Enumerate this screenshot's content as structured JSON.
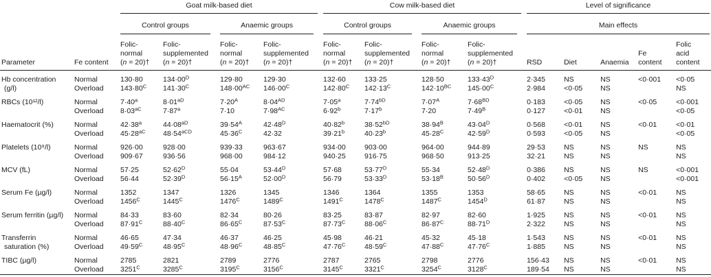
{
  "table": {
    "header": {
      "groups": [
        {
          "label": "Goat milk-based diet"
        },
        {
          "label": "Cow milk-based diet"
        },
        {
          "label": "Level of significance"
        }
      ],
      "subgroups": [
        {
          "label": "Control groups"
        },
        {
          "label": "Anaemic groups"
        },
        {
          "label": "Control groups"
        },
        {
          "label": "Anaemic groups"
        },
        {
          "label": "Main effects"
        }
      ],
      "parameter": "Parameter",
      "fe_content": "Fe content",
      "group_cols": [
        [
          "Folic-",
          "normal",
          "(n = 20)†"
        ],
        [
          "Folic-",
          "supplemented",
          "(n = 20)†"
        ],
        [
          "Folic-",
          "normal",
          "(n = 20)†"
        ],
        [
          "Folic-",
          "supplemented",
          "(n = 20)†"
        ],
        [
          "Folic-",
          "normal",
          "(n = 20)†"
        ],
        [
          "Folic-",
          "supplemented",
          "(n = 20)†"
        ],
        [
          "Folic-",
          "normal",
          "(n = 20)†"
        ],
        [
          "Folic-",
          "supplemented",
          "(n = 20)†"
        ]
      ],
      "sig_cols": [
        [
          "RSD"
        ],
        [
          "Diet"
        ],
        [
          "Anaemia"
        ],
        [
          "Fe",
          "content"
        ],
        [
          "Folic",
          "acid",
          "content"
        ]
      ]
    },
    "rows": [
      {
        "parameter": [
          "Hb concentration",
          "(g/l)"
        ],
        "normal": {
          "label": "Normal",
          "values": [
            "130·80",
            "134·00^D",
            "129·80",
            "129·30",
            "132·60",
            "133·25",
            "128·50",
            "133·43^D"
          ],
          "sig": [
            "2·345",
            "NS",
            "NS",
            "<0·001",
            "<0·05"
          ]
        },
        "overload": {
          "label": "Overload",
          "values": [
            "143·80^C",
            "141·30^C",
            "148·00^AC",
            "146·00^C",
            "142·80^C",
            "142·13^C",
            "142·10^BC",
            "145·00^C"
          ],
          "sig": [
            "2·984",
            "<0·05",
            "NS",
            "",
            "NS"
          ]
        }
      },
      {
        "parameter": [
          "RBCs (10¹²/l)",
          ""
        ],
        "normal": {
          "label": "Normal",
          "values": [
            "7·40^a",
            "8·01^aD",
            "7·20^A",
            "8·04^AD",
            "7·05^a",
            "7·74^bD",
            "7·07^A",
            "7·68^BD"
          ],
          "sig": [
            "0·183",
            "<0·05",
            "NS",
            "<0·05",
            "<0·001"
          ]
        },
        "overload": {
          "label": "Overload",
          "values": [
            "8·03^aC",
            "7·87^a",
            "7·10",
            "7·98^AC",
            "6·92^b",
            "7·17^b",
            "7·20",
            "7·49^B"
          ],
          "sig": [
            "0·127",
            "<0·01",
            "NS",
            "",
            "<0·05"
          ]
        }
      },
      {
        "parameter": [
          "Haematocrit (%)",
          ""
        ],
        "normal": {
          "label": "Normal",
          "values": [
            "42·38^a",
            "44·08^aD",
            "39·54^A",
            "42·48^D",
            "40·82^b",
            "38·52^bD",
            "38·94^B",
            "43·04^D"
          ],
          "sig": [
            "0·568",
            "<0·01",
            "NS",
            "<0·01",
            "<0·01"
          ]
        },
        "overload": {
          "label": "Overload",
          "values": [
            "45·28^aC",
            "48·54^aCD",
            "45·36^C",
            "42·32",
            "39·21^b",
            "40·23^b",
            "45·28^C",
            "42·59^D"
          ],
          "sig": [
            "0·593",
            "<0·05",
            "NS",
            "",
            "<0·05"
          ]
        }
      },
      {
        "parameter": [
          "Platelets (10⁹/l)",
          ""
        ],
        "normal": {
          "label": "Normal",
          "values": [
            "926·00",
            "928·00",
            "939·33",
            "963·67",
            "934·00",
            "903·00",
            "964·00",
            "944·89"
          ],
          "sig": [
            "29·53",
            "NS",
            "NS",
            "NS",
            "NS"
          ]
        },
        "overload": {
          "label": "Overload",
          "values": [
            "909·67",
            "936·56",
            "968·00",
            "984·12",
            "940·25",
            "916·75",
            "968·50",
            "913·25"
          ],
          "sig": [
            "32·21",
            "NS",
            "NS",
            "",
            "NS"
          ]
        }
      },
      {
        "parameter": [
          "MCV (fL)",
          ""
        ],
        "normal": {
          "label": "Normal",
          "values": [
            "57·25",
            "52·62^D",
            "55·04",
            "53·44^D",
            "57·68",
            "53·77^D",
            "55·34",
            "52·48^D"
          ],
          "sig": [
            "0·386",
            "NS",
            "NS",
            "NS",
            "<0·001"
          ]
        },
        "overload": {
          "label": "Overload",
          "values": [
            "56·44",
            "52·39^D",
            "56·15^A",
            "52·00^D",
            "56·79",
            "53·33^D",
            "53·18^B",
            "50·56^D"
          ],
          "sig": [
            "0·402",
            "<0·05",
            "NS",
            "",
            "<0·001"
          ]
        }
      },
      {
        "parameter": [
          "Serum Fe (µg/l)",
          ""
        ],
        "normal": {
          "label": "Normal",
          "values": [
            "1352",
            "1347",
            "1326",
            "1345",
            "1346",
            "1364",
            "1355",
            "1353"
          ],
          "sig": [
            "58·65",
            "NS",
            "NS",
            "<0·01",
            "NS"
          ]
        },
        "overload": {
          "label": "Overload",
          "values": [
            "1456^C",
            "1445^C",
            "1476^C",
            "1489^C",
            "1491^C",
            "1478^C",
            "1487^C",
            "1454^D"
          ],
          "sig": [
            "61·87",
            "NS",
            "NS",
            "",
            "NS"
          ]
        }
      },
      {
        "parameter": [
          "Serum ferritin (µg/l)",
          ""
        ],
        "normal": {
          "label": "Normal",
          "values": [
            "84·33",
            "83·60",
            "82·34",
            "80·26",
            "83·25",
            "83·87",
            "82·97",
            "82·60"
          ],
          "sig": [
            "1·925",
            "NS",
            "NS",
            "<0·01",
            "NS"
          ]
        },
        "overload": {
          "label": "Overload",
          "values": [
            "87·91^C",
            "88·40^C",
            "86·65^C",
            "87·53^C",
            "87·73^C",
            "88·06^C",
            "86·87^C",
            "88·71^D"
          ],
          "sig": [
            "2·322",
            "NS",
            "NS",
            "",
            "NS"
          ]
        }
      },
      {
        "parameter": [
          "Transferrin",
          "saturation (%)"
        ],
        "normal": {
          "label": "Normal",
          "values": [
            "46·65",
            "47·34",
            "46·37",
            "46·25",
            "45·98",
            "46·21",
            "45·32",
            "45·18"
          ],
          "sig": [
            "1·543",
            "NS",
            "NS",
            "<0·01",
            "NS"
          ]
        },
        "overload": {
          "label": "Overload",
          "values": [
            "49·59^C",
            "48·95^C",
            "48·96^C",
            "48·85^C",
            "47·76^C",
            "48·59^C",
            "47·88^C",
            "47·76^C"
          ],
          "sig": [
            "1·885",
            "NS",
            "NS",
            "",
            "NS"
          ]
        }
      },
      {
        "parameter": [
          "TIBC (µg/l)",
          ""
        ],
        "normal": {
          "label": "Normal",
          "values": [
            "2785",
            "2821",
            "2789",
            "2776",
            "2787",
            "2765",
            "2798",
            "2776"
          ],
          "sig": [
            "156·43",
            "NS",
            "NS",
            "<0·01",
            "NS"
          ]
        },
        "overload": {
          "label": "Overload",
          "values": [
            "3251^C",
            "3285^C",
            "3195^C",
            "3156^C",
            "3145^C",
            "3321^C",
            "3254^C",
            "3128^C"
          ],
          "sig": [
            "189·54",
            "NS",
            "NS",
            "",
            "NS"
          ]
        }
      }
    ]
  }
}
